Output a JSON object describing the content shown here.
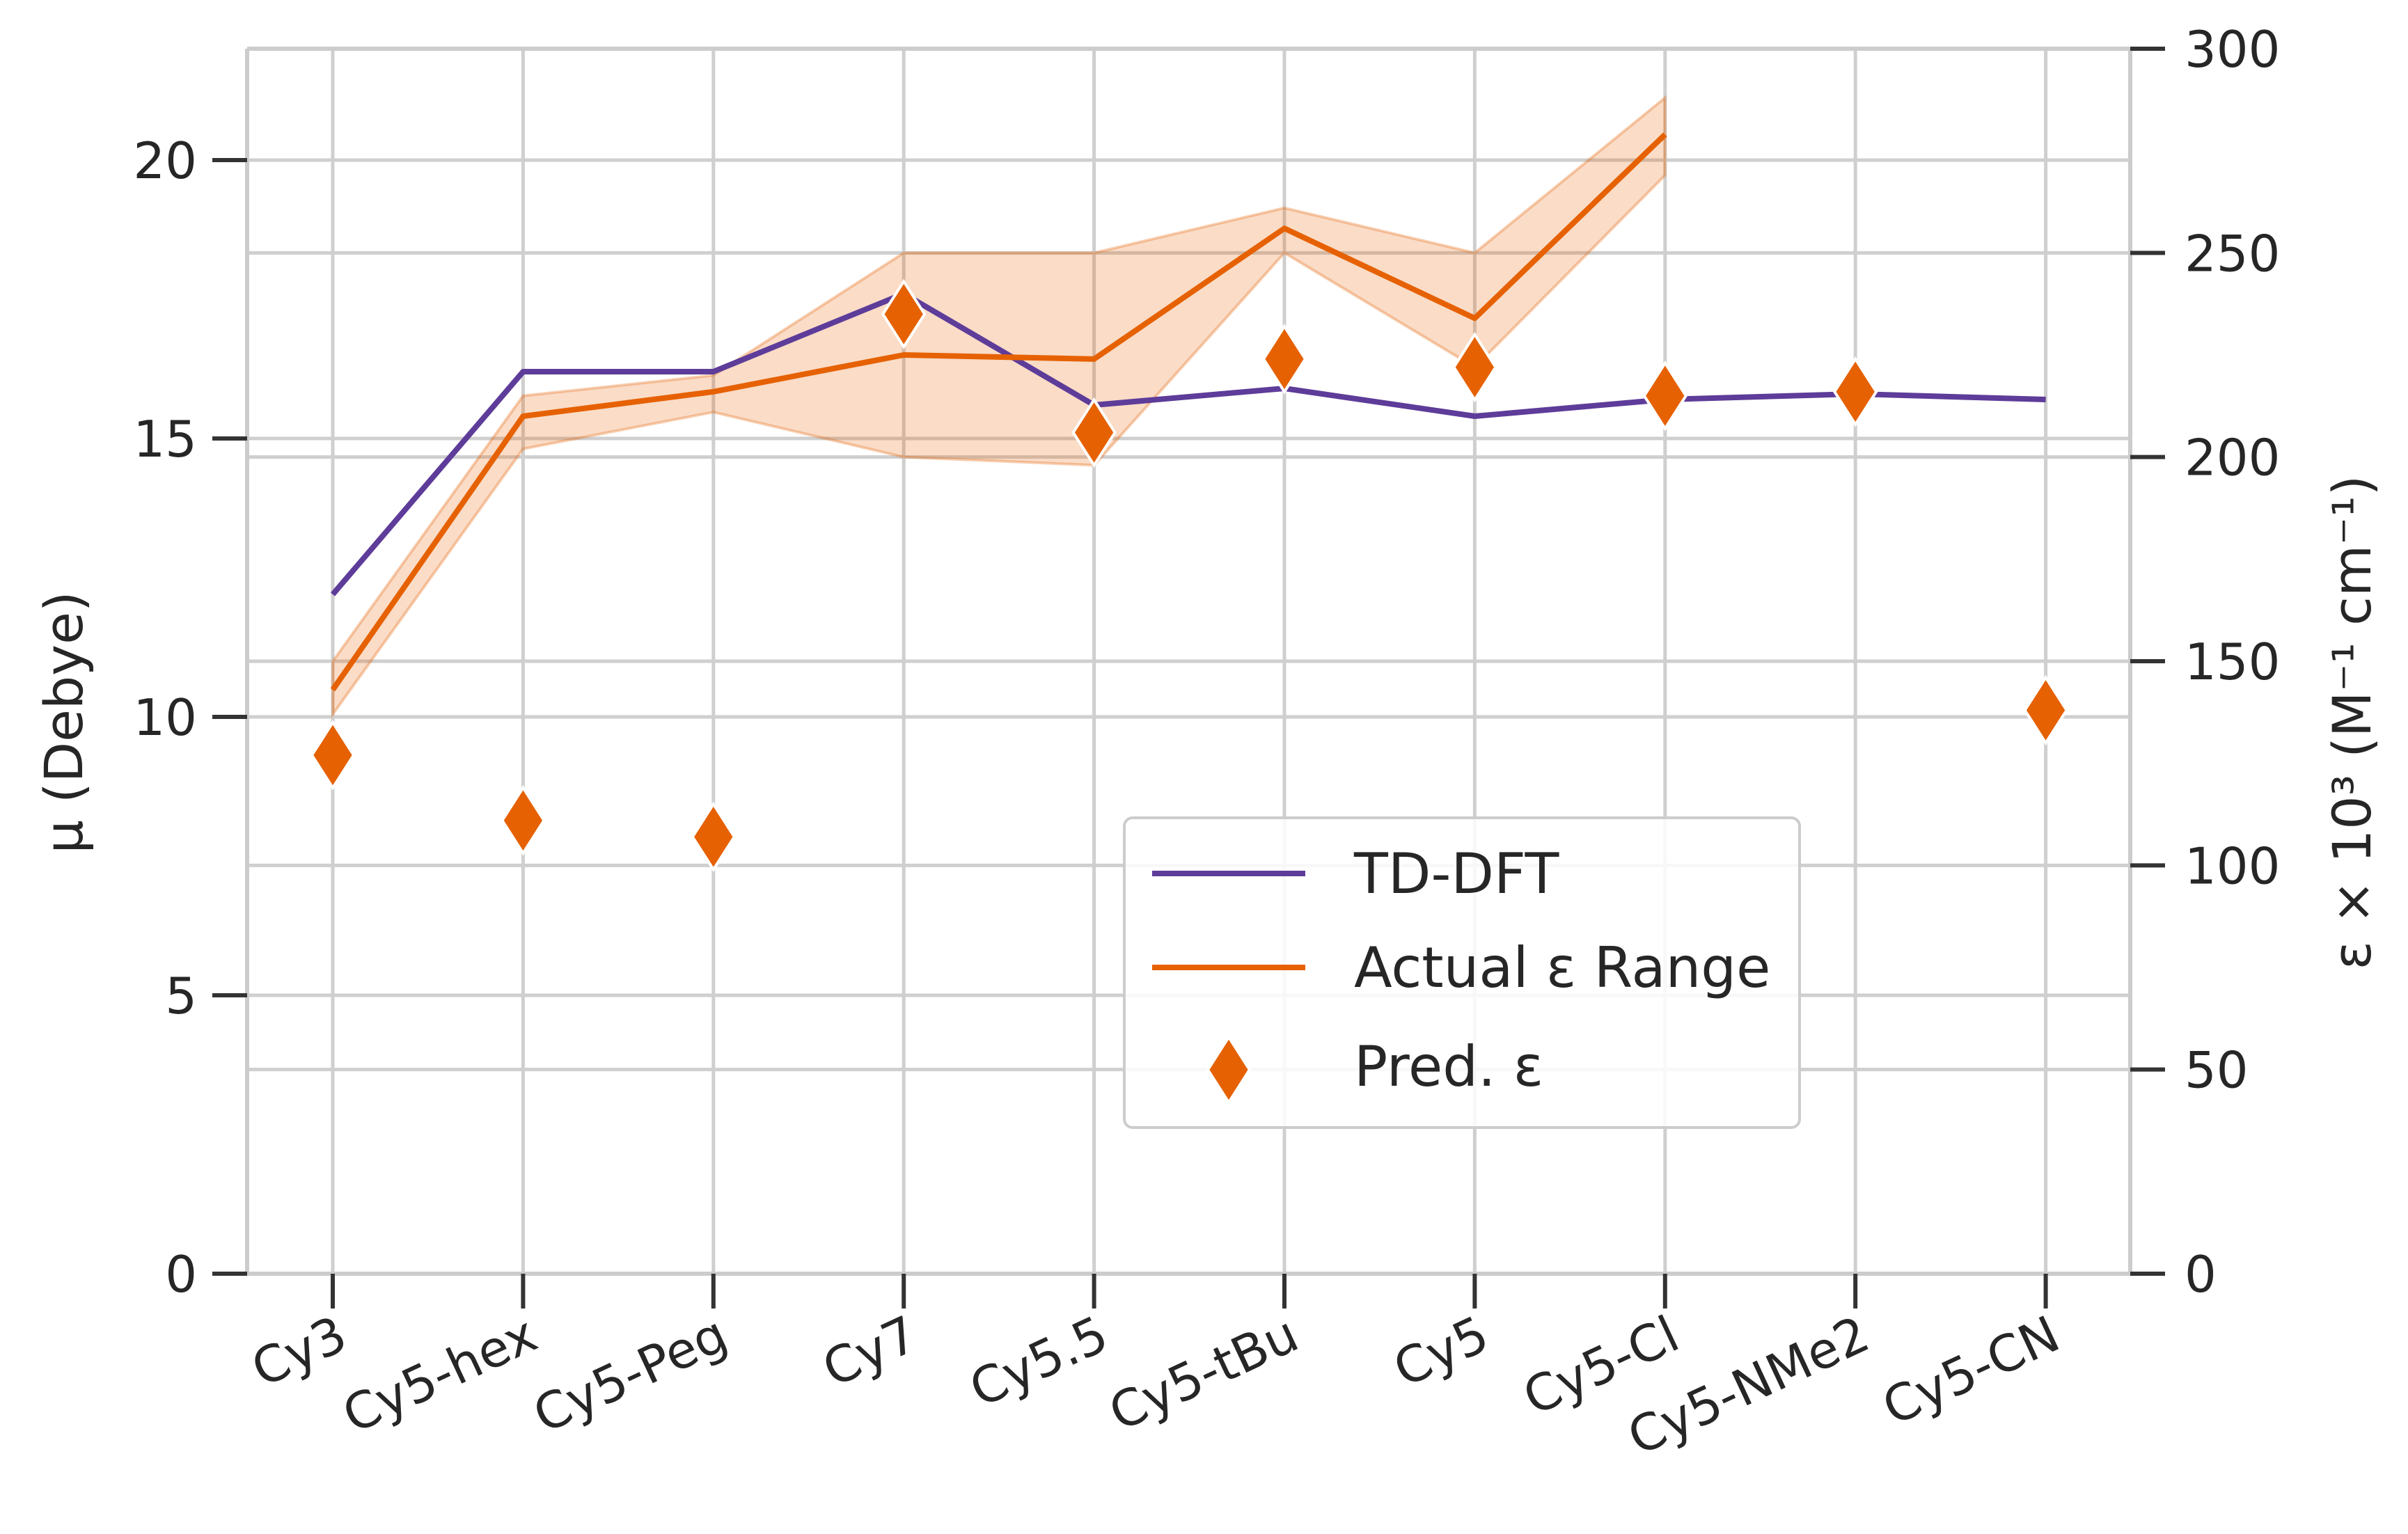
{
  "chart_data": {
    "type": "line",
    "categories": [
      "Cy3",
      "Cy5-hex",
      "Cy5-Peg",
      "Cy7",
      "Cy5.5",
      "Cy5-tBu",
      "Cy5",
      "Cy5-Cl",
      "Cy5-NMe2",
      "Cy5-CN"
    ],
    "left_axis": {
      "label": "μ (Debye)",
      "ylim": [
        0,
        22
      ],
      "ticks": [
        0,
        5,
        10,
        15,
        20
      ]
    },
    "right_axis": {
      "label": "ε × 10³ (M⁻¹ cm⁻¹)",
      "ylim": [
        0,
        300
      ],
      "ticks": [
        0,
        50,
        100,
        150,
        200,
        250,
        300
      ]
    },
    "series": [
      {
        "name": "TD-DFT",
        "type": "line",
        "axis": "left",
        "color": "#5e3c99",
        "values": [
          12.2,
          16.2,
          16.2,
          17.6,
          15.6,
          15.9,
          15.4,
          15.7,
          15.8,
          15.7
        ]
      },
      {
        "name": "Actual ε Range",
        "type": "line",
        "axis": "right",
        "color": "#e66101",
        "values": [
          143,
          210,
          216,
          225,
          224,
          256,
          234,
          279,
          null,
          null
        ],
        "band_low": [
          137,
          202,
          211,
          200,
          198,
          250,
          222,
          269,
          null,
          null
        ],
        "band_high": [
          150,
          215,
          220,
          250,
          250,
          261,
          250,
          288,
          null,
          null
        ]
      },
      {
        "name": "Pred. ε",
        "type": "scatter",
        "marker": "diamond",
        "axis": "right",
        "color": "#e66101",
        "values": [
          127,
          111,
          107,
          235,
          206,
          224,
          222,
          215,
          216,
          138
        ]
      }
    ],
    "grid": true,
    "legend_position": "lower-center-right"
  }
}
